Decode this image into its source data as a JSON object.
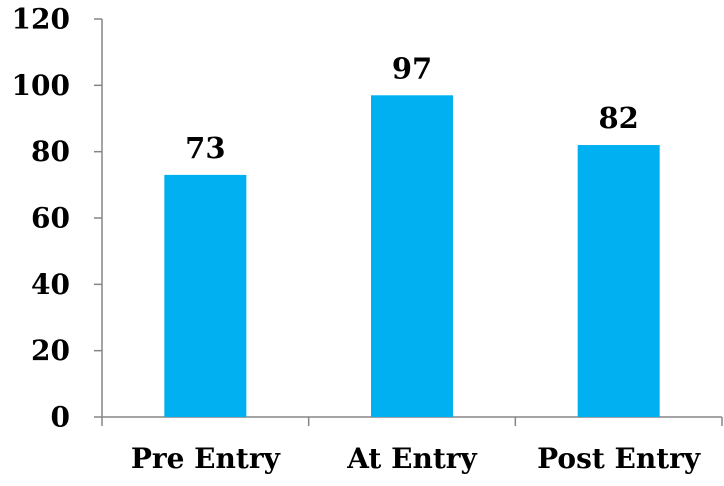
{
  "chart_data": {
    "type": "bar",
    "categories": [
      "Pre Entry",
      "At Entry",
      "Post Entry"
    ],
    "values": [
      73,
      97,
      82
    ],
    "data_labels": [
      "73",
      "97",
      "82"
    ],
    "title": "",
    "xlabel": "",
    "ylabel": "",
    "ylim": [
      0,
      120
    ],
    "yticks": [
      0,
      20,
      40,
      60,
      80,
      100,
      120
    ],
    "ytick_labels": [
      "0",
      "20",
      "40",
      "60",
      "80",
      "100",
      "120"
    ],
    "grid": false,
    "legend": "none",
    "bar_color": "#00B0F0",
    "axis_color": "#868686"
  }
}
